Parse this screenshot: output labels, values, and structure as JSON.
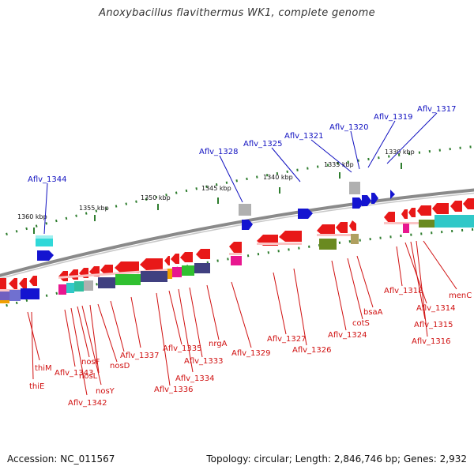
{
  "title": "Anoxybacillus flavithermus WK1, complete genome",
  "footer": {
    "accession": "Accession: NC_011567",
    "summary": "Topology: circular; Length: 2,846,746 bp; Genes: 2,932"
  },
  "colors": {
    "backbone": "#8a8a8a",
    "scale_dots": "#2e7d2e",
    "label_upper": "#1010c0",
    "label_lower": "#d01010"
  },
  "scale_labels": [
    {
      "text": "1360 kbp"
    },
    {
      "text": "1355 kbp"
    },
    {
      "text": "1350 kbp"
    },
    {
      "text": "1345 kbp"
    },
    {
      "text": "1340 kbp"
    },
    {
      "text": "1335 kbp"
    },
    {
      "text": "1330 kbp"
    }
  ],
  "upper_gene_labels": [
    {
      "text": "Aflv_1344"
    },
    {
      "text": "Aflv_1328"
    },
    {
      "text": "Aflv_1325"
    },
    {
      "text": "Aflv_1321"
    },
    {
      "text": "Aflv_1320"
    },
    {
      "text": "Aflv_1319"
    },
    {
      "text": "Aflv_1317"
    }
  ],
  "lower_gene_labels": [
    {
      "text": "thiM"
    },
    {
      "text": "thiE"
    },
    {
      "text": "Aflv_1343"
    },
    {
      "text": "Aflv_1342"
    },
    {
      "text": "nosF"
    },
    {
      "text": "nosY"
    },
    {
      "text": "nosL"
    },
    {
      "text": "nosD"
    },
    {
      "text": "Aflv_1337"
    },
    {
      "text": "Aflv_1336"
    },
    {
      "text": "Aflv_1335"
    },
    {
      "text": "Aflv_1334"
    },
    {
      "text": "Aflv_1333"
    },
    {
      "text": "nrgA"
    },
    {
      "text": "Aflv_1329"
    },
    {
      "text": "Aflv_1327"
    },
    {
      "text": "Aflv_1326"
    },
    {
      "text": "Aflv_1324"
    },
    {
      "text": "cotS"
    },
    {
      "text": "bsaA"
    },
    {
      "text": "Aflv_1318"
    },
    {
      "text": "Aflv_1314"
    },
    {
      "text": "Aflv_1315"
    },
    {
      "text": "Aflv_1316"
    },
    {
      "text": "menC"
    }
  ]
}
